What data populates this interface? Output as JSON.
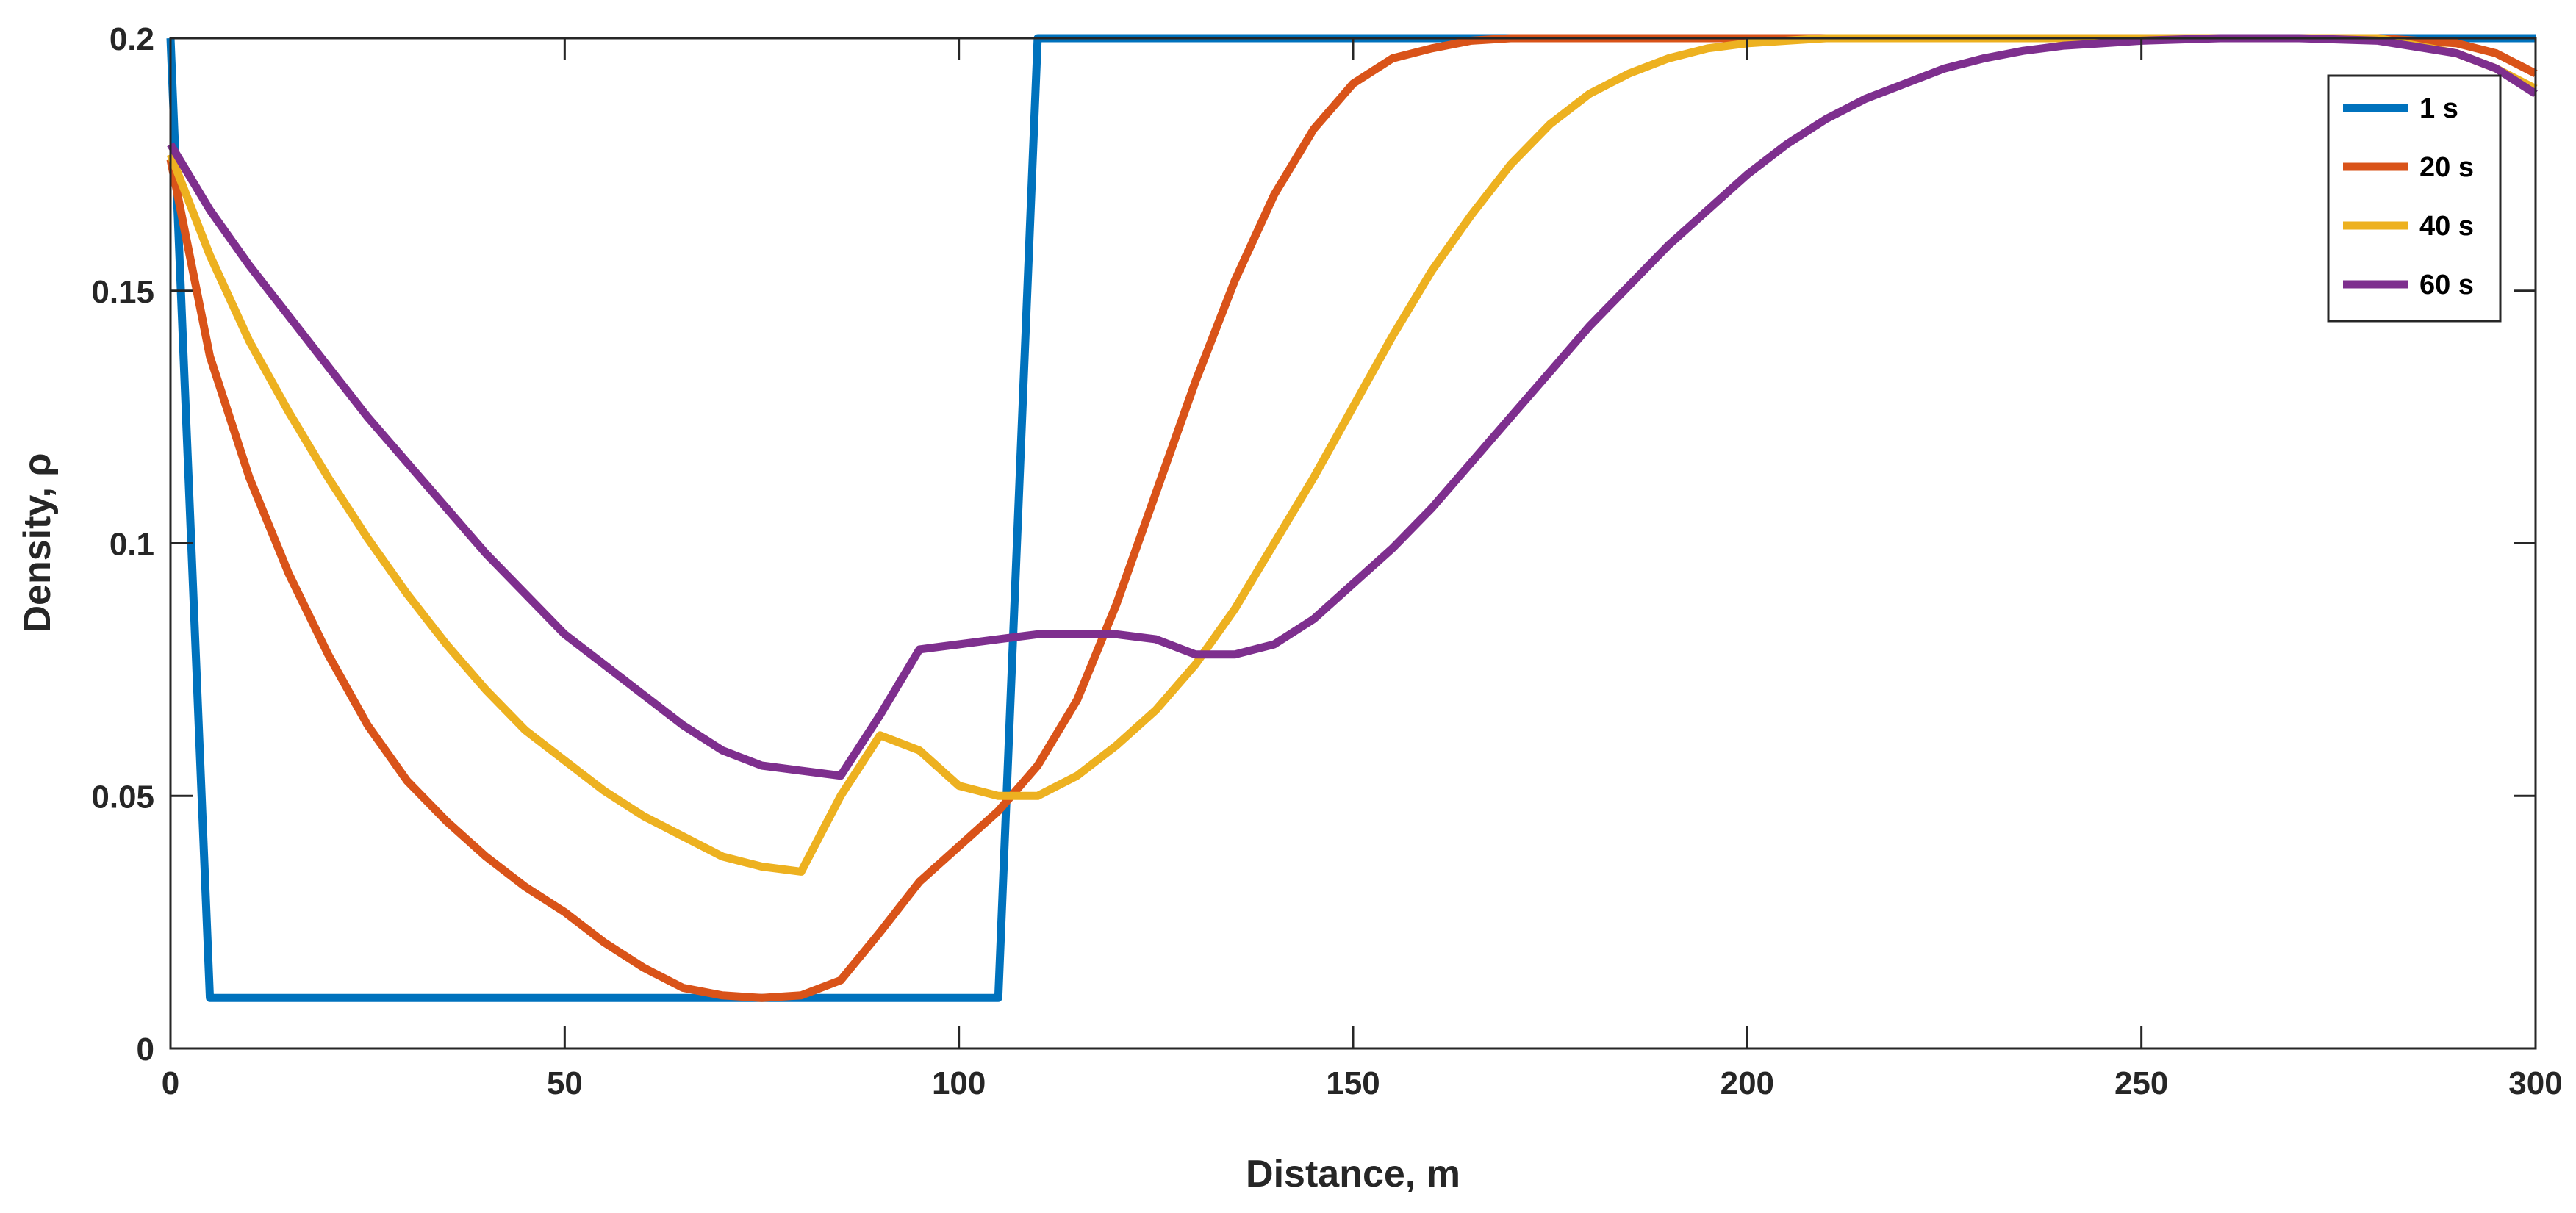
{
  "chart_data": {
    "type": "line",
    "title": "",
    "xlabel": "Distance, m",
    "ylabel": "Density, ρ",
    "xlim": [
      0,
      300
    ],
    "ylim": [
      0,
      0.2
    ],
    "grid": false,
    "legend_position": "top-right",
    "x_ticks": [
      0,
      50,
      100,
      150,
      200,
      250,
      300
    ],
    "y_ticks": [
      0,
      0.05,
      0.1,
      0.15,
      0.2
    ],
    "x_tick_labels": [
      "0",
      "50",
      "100",
      "150",
      "200",
      "250",
      "300"
    ],
    "y_tick_labels": [
      "0",
      "0.05",
      "0.1",
      "0.15",
      "0.2"
    ],
    "series": [
      {
        "name": "1 s",
        "color": "#0072BD",
        "x": [
          0,
          5,
          105,
          110,
          300
        ],
        "y": [
          0.2,
          0.01,
          0.01,
          0.2,
          0.2
        ]
      },
      {
        "name": "20 s",
        "color": "#D95319",
        "x": [
          0,
          5,
          10,
          15,
          20,
          25,
          30,
          35,
          40,
          45,
          50,
          55,
          60,
          65,
          70,
          75,
          80,
          85,
          90,
          95,
          100,
          105,
          110,
          115,
          120,
          125,
          130,
          135,
          140,
          145,
          150,
          155,
          160,
          165,
          170,
          180,
          190,
          200,
          250,
          280,
          290,
          295,
          300
        ],
        "y": [
          0.176,
          0.137,
          0.113,
          0.094,
          0.078,
          0.064,
          0.053,
          0.045,
          0.038,
          0.032,
          0.027,
          0.021,
          0.016,
          0.012,
          0.0105,
          0.01,
          0.0105,
          0.0135,
          0.023,
          0.033,
          0.04,
          0.047,
          0.056,
          0.069,
          0.088,
          0.11,
          0.132,
          0.152,
          0.169,
          0.182,
          0.191,
          0.196,
          0.198,
          0.1995,
          0.2,
          0.2,
          0.2,
          0.2,
          0.2,
          0.2,
          0.199,
          0.197,
          0.193
        ]
      },
      {
        "name": "40 s",
        "color": "#EDB120",
        "x": [
          0,
          5,
          10,
          15,
          20,
          25,
          30,
          35,
          40,
          45,
          50,
          55,
          60,
          65,
          70,
          75,
          80,
          85,
          90,
          95,
          100,
          105,
          110,
          115,
          120,
          125,
          130,
          135,
          140,
          145,
          150,
          155,
          160,
          165,
          170,
          175,
          180,
          185,
          190,
          195,
          200,
          205,
          210,
          220,
          230,
          250,
          280,
          290,
          295,
          300
        ],
        "y": [
          0.177,
          0.157,
          0.14,
          0.126,
          0.113,
          0.101,
          0.09,
          0.08,
          0.071,
          0.063,
          0.057,
          0.051,
          0.046,
          0.042,
          0.038,
          0.036,
          0.035,
          0.05,
          0.062,
          0.059,
          0.052,
          0.05,
          0.05,
          0.054,
          0.06,
          0.067,
          0.076,
          0.087,
          0.1,
          0.113,
          0.127,
          0.141,
          0.154,
          0.165,
          0.175,
          0.183,
          0.189,
          0.193,
          0.196,
          0.198,
          0.199,
          0.1995,
          0.2,
          0.2,
          0.2,
          0.2,
          0.2,
          0.197,
          0.194,
          0.19
        ]
      },
      {
        "name": "60 s",
        "color": "#7E2F8E",
        "x": [
          0,
          5,
          10,
          15,
          20,
          25,
          30,
          35,
          40,
          45,
          50,
          55,
          60,
          65,
          70,
          75,
          80,
          85,
          90,
          95,
          100,
          105,
          110,
          115,
          120,
          125,
          130,
          135,
          140,
          145,
          150,
          155,
          160,
          165,
          170,
          175,
          180,
          185,
          190,
          195,
          200,
          205,
          210,
          215,
          220,
          225,
          230,
          235,
          240,
          245,
          250,
          260,
          270,
          280,
          290,
          295,
          300
        ],
        "y": [
          0.179,
          0.166,
          0.155,
          0.145,
          0.135,
          0.125,
          0.116,
          0.107,
          0.098,
          0.09,
          0.082,
          0.076,
          0.07,
          0.064,
          0.059,
          0.056,
          0.055,
          0.054,
          0.066,
          0.079,
          0.08,
          0.081,
          0.082,
          0.082,
          0.082,
          0.081,
          0.078,
          0.078,
          0.08,
          0.085,
          0.092,
          0.099,
          0.107,
          0.116,
          0.125,
          0.134,
          0.143,
          0.151,
          0.159,
          0.166,
          0.173,
          0.179,
          0.184,
          0.188,
          0.191,
          0.194,
          0.196,
          0.1975,
          0.1985,
          0.199,
          0.1995,
          0.2,
          0.2,
          0.1995,
          0.197,
          0.194,
          0.189
        ]
      }
    ]
  }
}
